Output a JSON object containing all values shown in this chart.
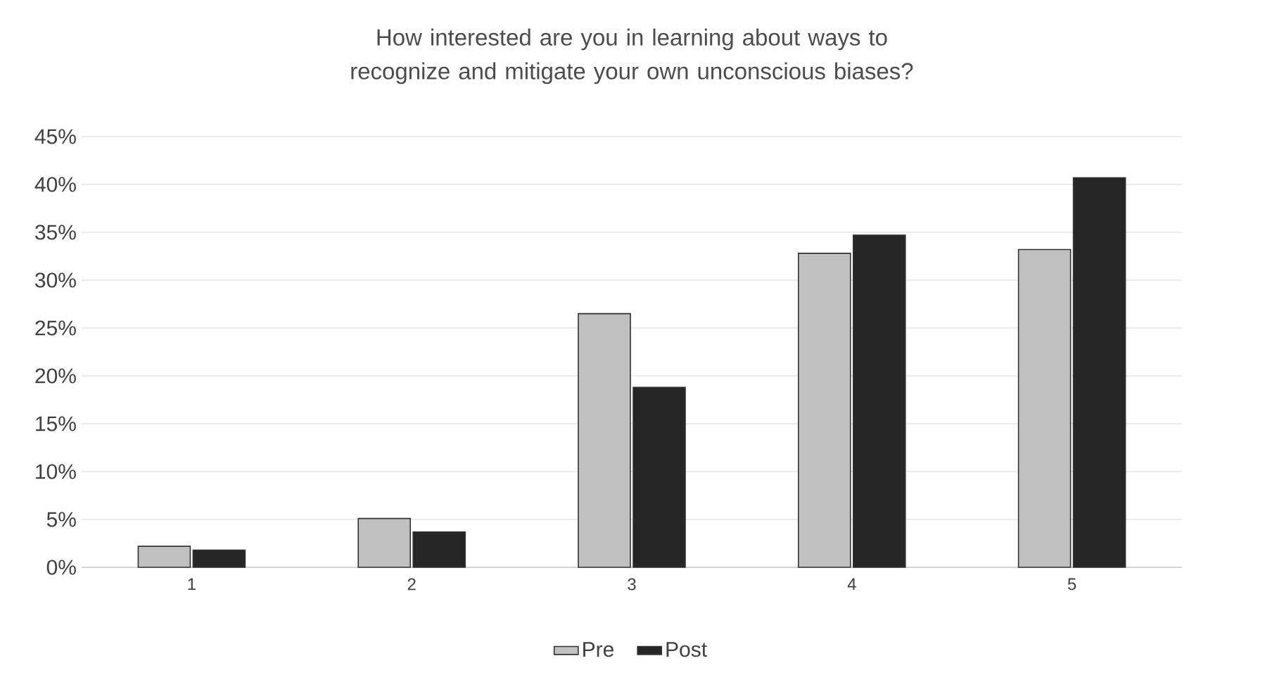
{
  "chart_data": {
    "type": "bar",
    "title": "How interested are you in learning about ways to recognize and mitigate your own unconscious biases?",
    "categories": [
      "1",
      "2",
      "3",
      "4",
      "5"
    ],
    "series": [
      {
        "name": "Pre",
        "color": "#c0c0c0",
        "values": [
          2.2,
          5.1,
          26.5,
          32.8,
          33.2
        ]
      },
      {
        "name": "Post",
        "color": "#262626",
        "values": [
          1.8,
          3.7,
          18.8,
          34.7,
          40.7
        ]
      }
    ],
    "ylim": [
      0,
      45
    ],
    "yticks": [
      {
        "value": 0,
        "label": "0%"
      },
      {
        "value": 5,
        "label": "5%"
      },
      {
        "value": 10,
        "label": "10%"
      },
      {
        "value": 15,
        "label": "15%"
      },
      {
        "value": 20,
        "label": "20%"
      },
      {
        "value": 25,
        "label": "25%"
      },
      {
        "value": 30,
        "label": "30%"
      },
      {
        "value": 35,
        "label": "35%"
      },
      {
        "value": 40,
        "label": "40%"
      },
      {
        "value": 45,
        "label": "45%"
      }
    ],
    "grid": "y",
    "legend": "bottom"
  }
}
